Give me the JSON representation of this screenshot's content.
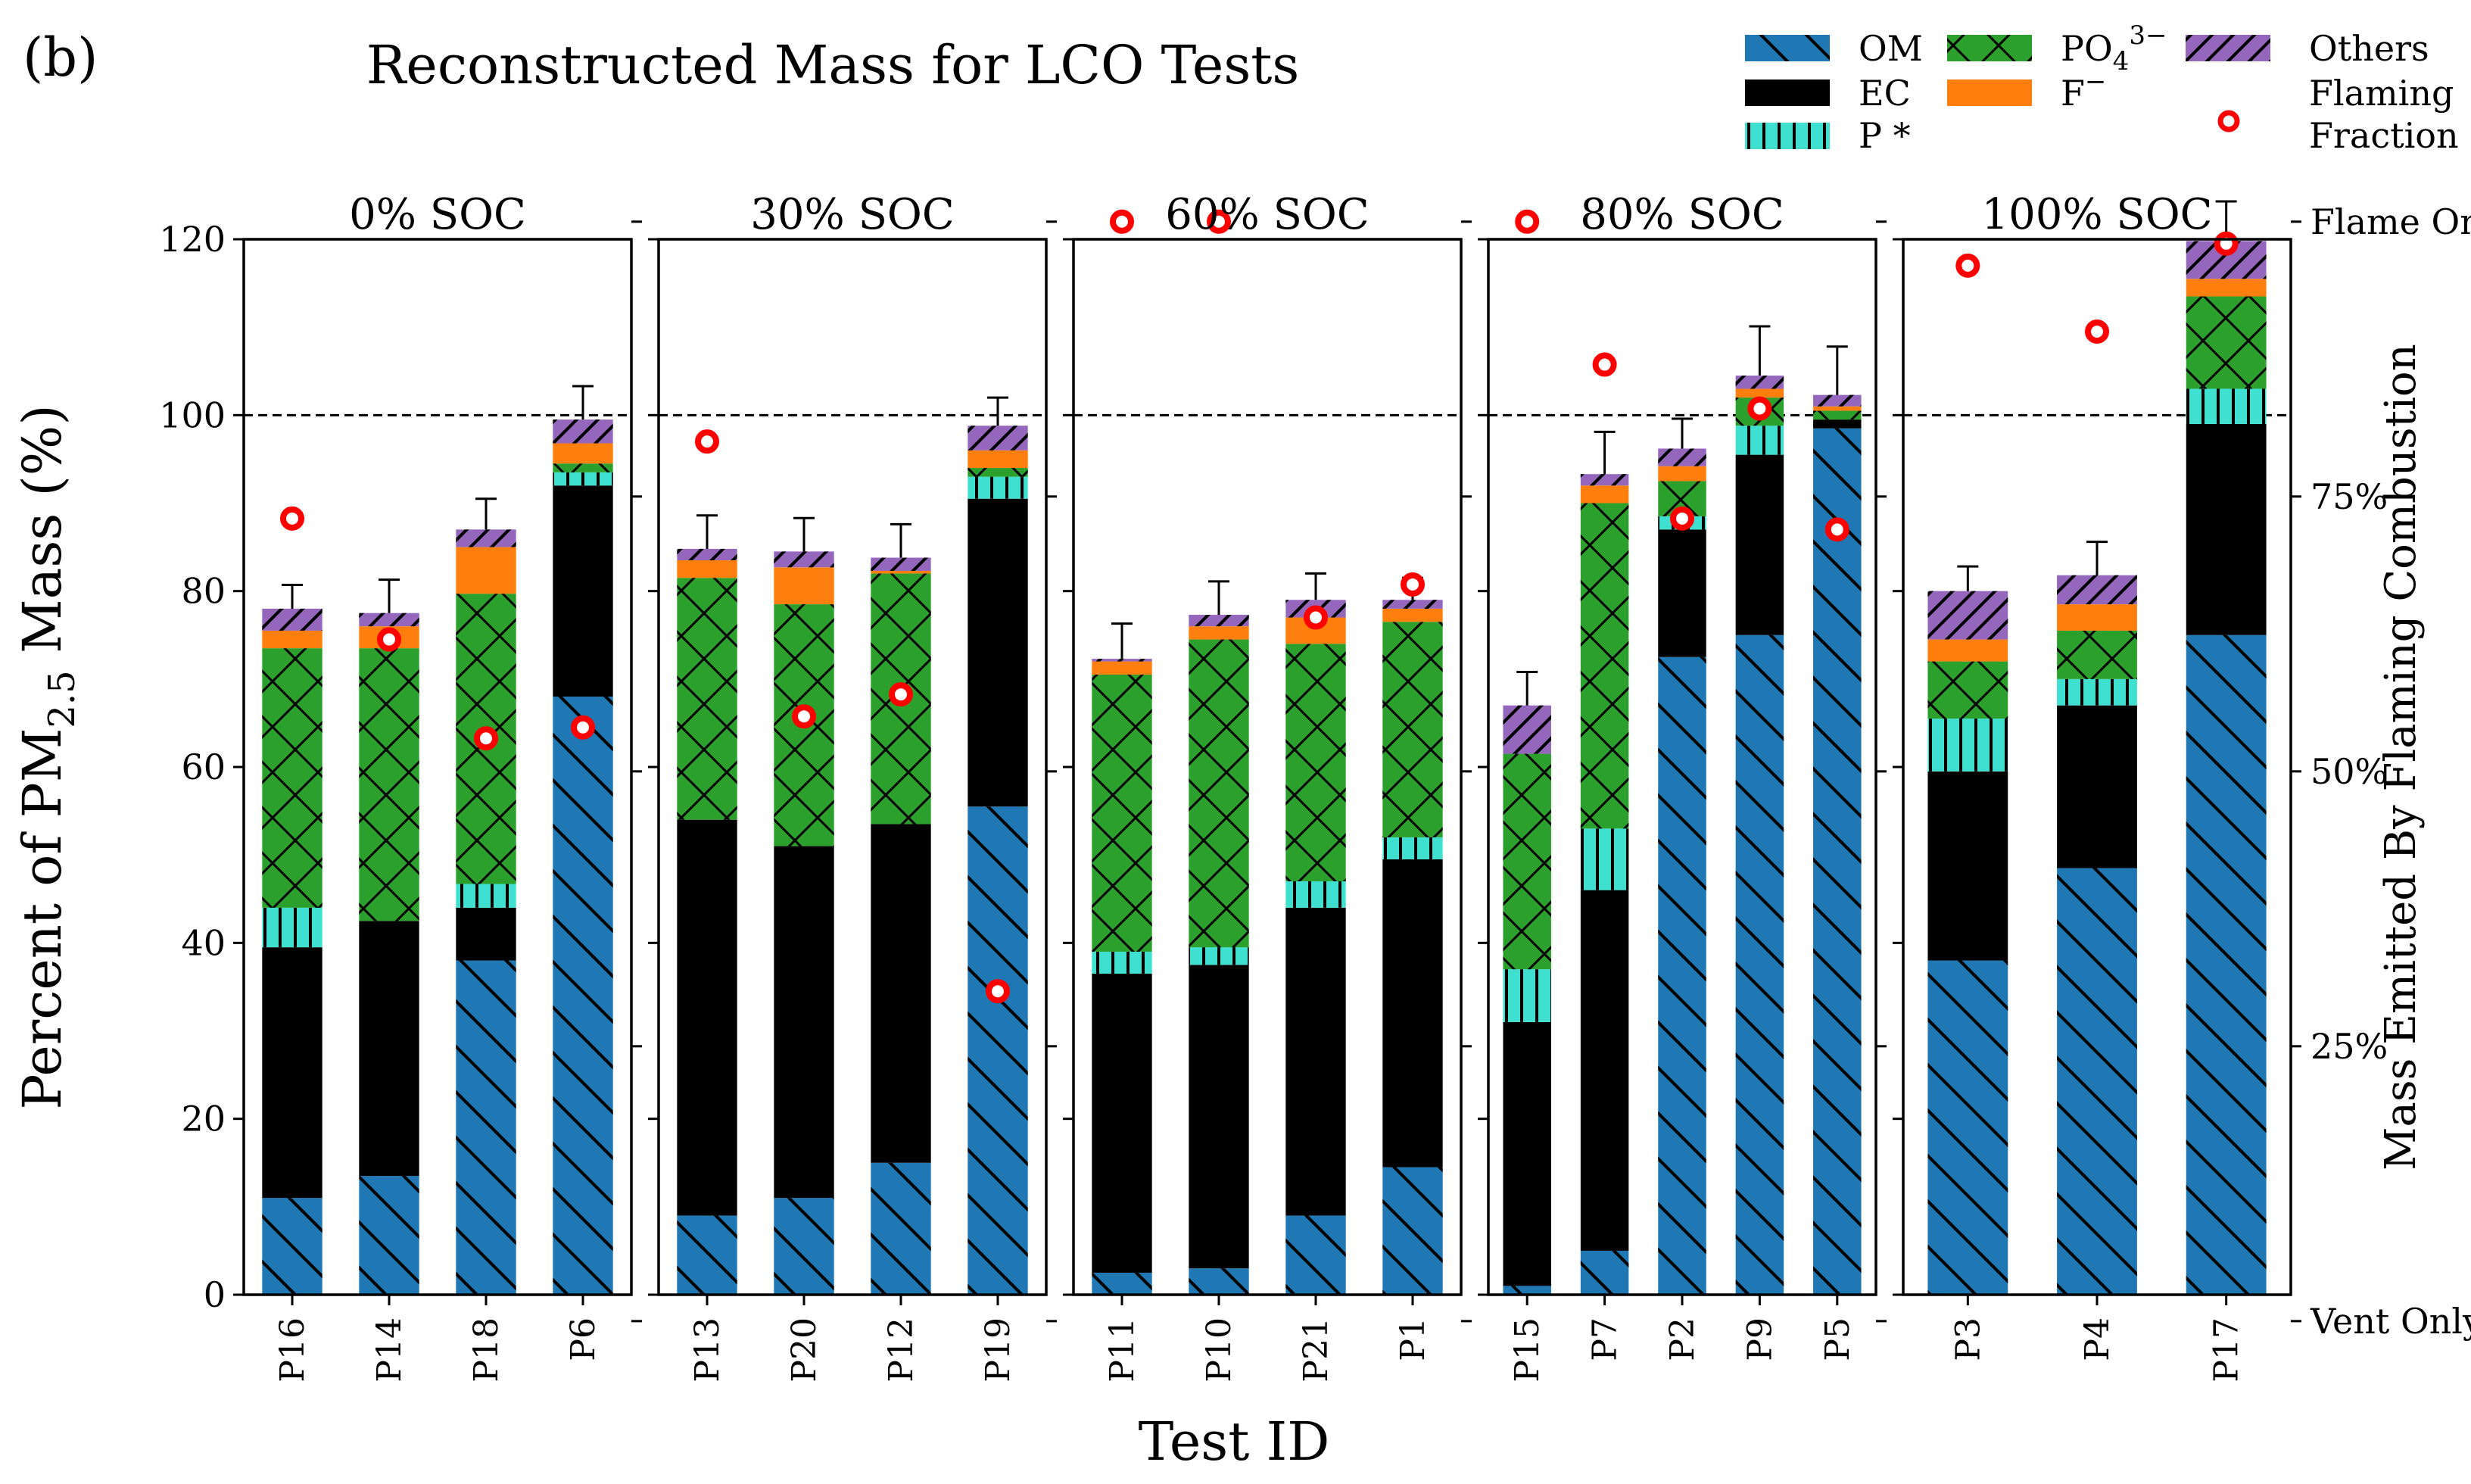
{
  "chart_data": {
    "type": "bar",
    "stacked": true,
    "panel_label": "(b)",
    "title": "Reconstructed Mass for LCO Tests",
    "xlabel": "Test ID",
    "ylabel": {
      "prefix": "Percent of PM",
      "subscript": "2.5",
      "suffix": " Mass (%)"
    },
    "ylim": [
      0,
      120
    ],
    "yticks": [
      "0",
      "20",
      "40",
      "60",
      "80",
      "100",
      "120"
    ],
    "reference_line": 100,
    "right_axis": {
      "label": "Mass Emitted By Flaming Combustion",
      "ticks": [
        {
          "value": 0,
          "label": "Vent Only"
        },
        {
          "value": 0.25,
          "label": "25%"
        },
        {
          "value": 0.5,
          "label": "50%"
        },
        {
          "value": 0.75,
          "label": "75%"
        },
        {
          "value": 1,
          "label": "Flame Only"
        }
      ]
    },
    "component_order": [
      "OM",
      "EC",
      "P*",
      "PO4",
      "F",
      "Others"
    ],
    "components": {
      "OM": {
        "label": "OM",
        "color": "#1f77b4",
        "hatch": "backslash"
      },
      "EC": {
        "label": "EC",
        "color": "#000000",
        "hatch": "none"
      },
      "P*": {
        "label": "P *",
        "color": "#40e0d0",
        "hatch": "vertical"
      },
      "PO4": {
        "label": "PO",
        "sub": "4",
        "sup": "3−",
        "color": "#2ca02c",
        "hatch": "cross"
      },
      "F": {
        "label": "F",
        "sup": "−",
        "color": "#ff7f0e",
        "hatch": "none"
      },
      "Others": {
        "label": "Others",
        "color": "#9467bd",
        "hatch": "slash"
      }
    },
    "flaming_fraction_label": [
      "Flaming",
      "Fraction"
    ],
    "flaming_marker_color": "#ff0000",
    "panels": [
      {
        "title": "0% SOC",
        "tests": [
          {
            "id": "P16",
            "values": [
              11,
              28.5,
              4.5,
              29.5,
              2,
              2.5
            ],
            "error": 2.7,
            "flaming": 0.73
          },
          {
            "id": "P14",
            "values": [
              13.5,
              29,
              0,
              31,
              2.5,
              1.5
            ],
            "error": 3.8,
            "flaming": 0.62
          },
          {
            "id": "P18",
            "values": [
              38,
              6,
              2.7,
              33,
              5.3,
              2
            ],
            "error": 3.5,
            "flaming": 0.53
          },
          {
            "id": "P6",
            "values": [
              68,
              24,
              1.5,
              1,
              2.3,
              2.7
            ],
            "error": 3.8,
            "flaming": 0.54
          }
        ]
      },
      {
        "title": "30% SOC",
        "tests": [
          {
            "id": "P13",
            "values": [
              9,
              45,
              0,
              27.5,
              2,
              1.3
            ],
            "error": 3.8,
            "flaming": 0.8
          },
          {
            "id": "P20",
            "values": [
              11,
              40,
              0,
              27.5,
              4.2,
              1.8
            ],
            "error": 3.8,
            "flaming": 0.55
          },
          {
            "id": "P12",
            "values": [
              15,
              38.5,
              0,
              28.5,
              0.3,
              1.5
            ],
            "error": 3.8,
            "flaming": 0.57
          },
          {
            "id": "P19",
            "values": [
              55.5,
              35,
              2.5,
              1,
              2,
              2.8
            ],
            "error": 3.2,
            "flaming": 0.3
          }
        ]
      },
      {
        "title": "60% SOC",
        "tests": [
          {
            "id": "P11",
            "values": [
              2.5,
              34,
              2.5,
              31.5,
              1.5,
              0.3
            ],
            "error": 4,
            "flaming": 1
          },
          {
            "id": "P10",
            "values": [
              3,
              34.5,
              2,
              35,
              1.5,
              1.3
            ],
            "error": 3.8,
            "flaming": 1
          },
          {
            "id": "P21",
            "values": [
              9,
              35,
              3,
              27,
              3,
              2
            ],
            "error": 3,
            "flaming": 0.64
          },
          {
            "id": "P1",
            "values": [
              14.5,
              35,
              2.5,
              24.5,
              1.5,
              1
            ],
            "error": 2.5,
            "flaming": 0.67
          }
        ]
      },
      {
        "title": "80% SOC",
        "tests": [
          {
            "id": "P15",
            "values": [
              1,
              30,
              6,
              24.5,
              0,
              5.5
            ],
            "error": 3.8,
            "flaming": 1
          },
          {
            "id": "P7",
            "values": [
              5,
              41,
              7,
              37,
              2,
              1.3
            ],
            "error": 4.8,
            "flaming": 0.87
          },
          {
            "id": "P2",
            "values": [
              72.5,
              14.5,
              1.5,
              4,
              1.7,
              2
            ],
            "error": 3.4,
            "flaming": 0.73
          },
          {
            "id": "P9",
            "values": [
              75,
              20.5,
              3.3,
              3.2,
              1,
              1.5
            ],
            "error": 5.6,
            "flaming": 0.83
          },
          {
            "id": "P5",
            "values": [
              98.5,
              1,
              0,
              1,
              0.5,
              1.3
            ],
            "error": 5.5,
            "flaming": 0.72
          }
        ]
      },
      {
        "title": "100% SOC",
        "tests": [
          {
            "id": "P3",
            "values": [
              38,
              21.5,
              6,
              6.5,
              2.5,
              5.5
            ],
            "error": 2.8,
            "flaming": 0.96
          },
          {
            "id": "P4",
            "values": [
              48.5,
              18.5,
              3,
              5.5,
              3,
              3.3
            ],
            "error": 3.8,
            "flaming": 0.9
          },
          {
            "id": "P17",
            "values": [
              75,
              24,
              4,
              10.5,
              2,
              4.3
            ],
            "error": 4.5,
            "flaming": 0.98
          }
        ]
      }
    ]
  }
}
